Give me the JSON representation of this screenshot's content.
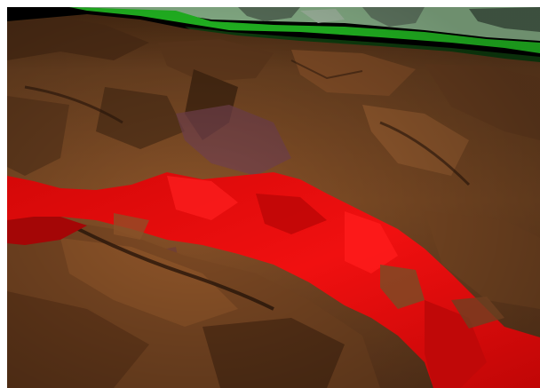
{
  "scene": {
    "kind": "3d-terrain-render",
    "layers": [
      {
        "name": "sky-foliage",
        "color": "#a8d9a8"
      },
      {
        "name": "surface-boundary",
        "color": "#29e629"
      },
      {
        "name": "terrain",
        "color": "#8a5128"
      },
      {
        "name": "highlighted-stratum",
        "color": "#e00808"
      },
      {
        "name": "subsurface-patch",
        "color": "#6a3a40"
      }
    ]
  }
}
